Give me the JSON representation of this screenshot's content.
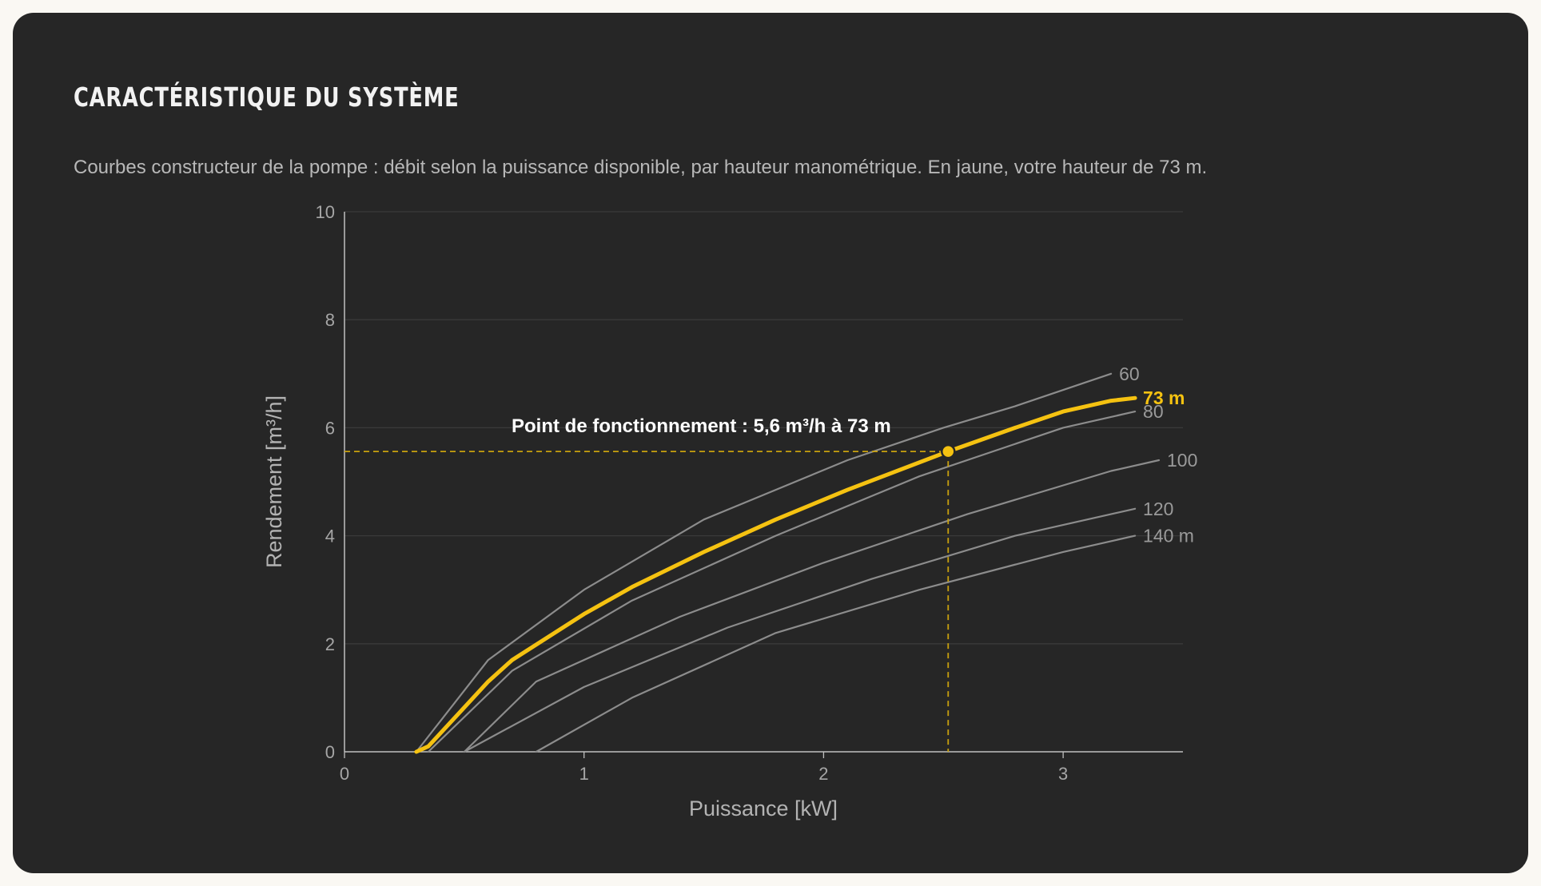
{
  "header": {
    "title": "CARACTÉRISTIQUE DU SYSTÈME",
    "subtitle": "Courbes constructeur de la pompe : débit selon la puissance disponible, par hauteur manométrique. En jaune, votre hauteur de 73 m."
  },
  "colors": {
    "background": "#262626",
    "grid": "#3a3a3a",
    "axis": "#bfbfbf",
    "curve": "#8c8c8c",
    "highlight": "#f5c211",
    "guide": "#c9a10e"
  },
  "chart_data": {
    "type": "line",
    "xlabel": "Puissance [kW]",
    "ylabel": "Rendement [m³/h]",
    "xlim": [
      0,
      3.5
    ],
    "ylim": [
      0,
      10
    ],
    "xticks": [
      0,
      1,
      2,
      3
    ],
    "yticks": [
      0,
      2,
      4,
      6,
      8,
      10
    ],
    "grid": true,
    "series": [
      {
        "name": "60",
        "highlight": false,
        "x": [
          0.3,
          0.6,
          1.0,
          1.5,
          2.1,
          2.5,
          2.8,
          3.2
        ],
        "y": [
          0,
          1.7,
          3.0,
          4.3,
          5.4,
          6.0,
          6.4,
          7.0
        ]
      },
      {
        "name": "73 m",
        "highlight": true,
        "x": [
          0.3,
          0.35,
          0.6,
          0.7,
          1.0,
          1.2,
          1.5,
          1.8,
          2.1,
          2.52,
          2.8,
          3.0,
          3.2,
          3.3
        ],
        "y": [
          0,
          0.1,
          1.3,
          1.7,
          2.55,
          3.05,
          3.7,
          4.3,
          4.85,
          5.56,
          6.0,
          6.3,
          6.5,
          6.55
        ]
      },
      {
        "name": "80",
        "highlight": false,
        "x": [
          0.35,
          0.7,
          1.2,
          1.8,
          2.4,
          3.0,
          3.3
        ],
        "y": [
          0,
          1.5,
          2.8,
          4.0,
          5.1,
          6.0,
          6.3
        ]
      },
      {
        "name": "100",
        "highlight": false,
        "x": [
          0.5,
          0.8,
          1.4,
          2.0,
          2.6,
          3.2,
          3.4
        ],
        "y": [
          0,
          1.3,
          2.5,
          3.5,
          4.4,
          5.2,
          5.4
        ]
      },
      {
        "name": "120",
        "highlight": false,
        "x": [
          0.5,
          1.0,
          1.6,
          2.2,
          2.8,
          3.3
        ],
        "y": [
          0,
          1.2,
          2.3,
          3.2,
          4.0,
          4.5
        ]
      },
      {
        "name": "140 m",
        "highlight": false,
        "x": [
          0.8,
          1.2,
          1.8,
          2.4,
          3.0,
          3.3
        ],
        "y": [
          0,
          1.0,
          2.2,
          3.0,
          3.7,
          4.0
        ]
      }
    ],
    "operating_point": {
      "x": 2.52,
      "y": 5.56,
      "label": "Point de fonctionnement : 5,6 m³/h à 73 m"
    }
  }
}
